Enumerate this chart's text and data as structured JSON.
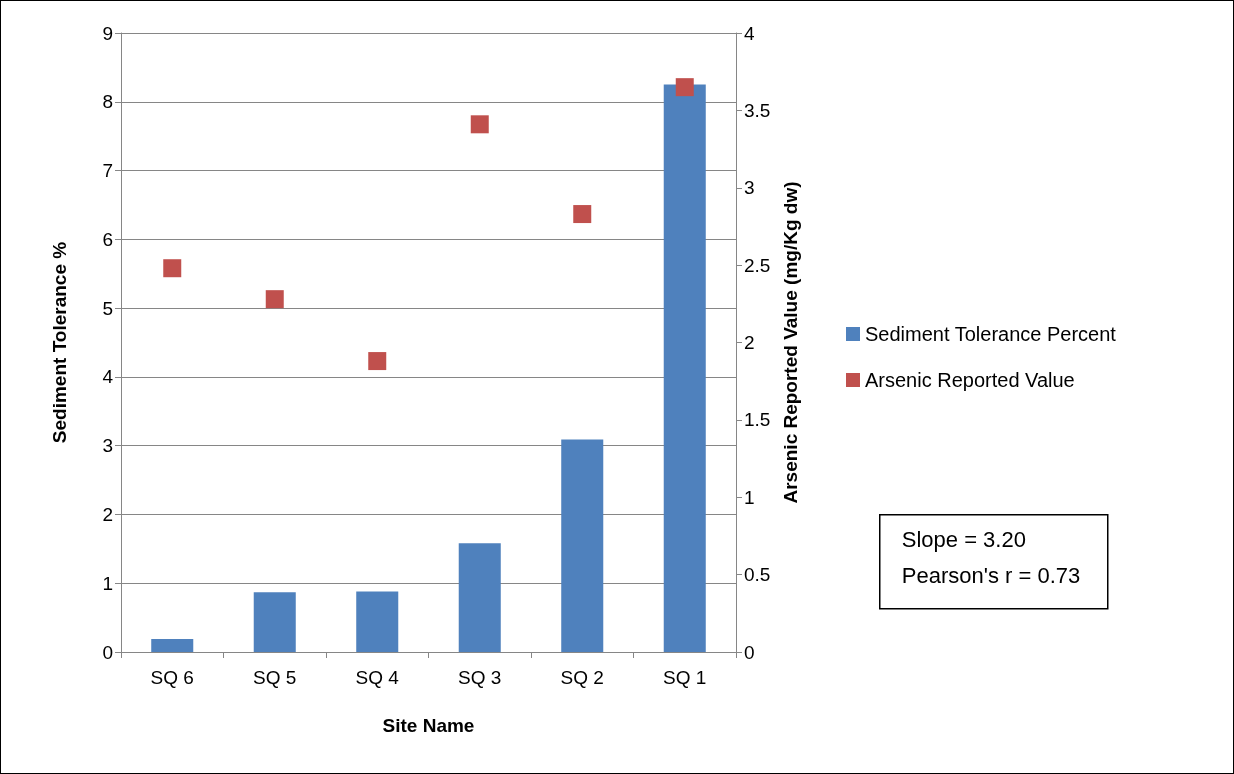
{
  "chart_data": {
    "type": "bar",
    "xlabel": "Site Name",
    "ylabel": "Sediment Tolerance %",
    "y2label": "Arsenic Reported Value (mg/Kg dw)",
    "categories": [
      "SQ 6",
      "SQ 5",
      "SQ 4",
      "SQ 3",
      "SQ 2",
      "SQ 1"
    ],
    "series": [
      {
        "name": "Sediment Tolerance Percent",
        "color": "#4f81bd",
        "values": [
          0.19,
          0.87,
          0.88,
          1.58,
          3.09,
          8.25
        ]
      },
      {
        "name": "Arsenic Reported Value",
        "type": "scatter",
        "axis": "y2",
        "color": "#c0504d",
        "marker": "square",
        "values": [
          2.48,
          2.28,
          1.88,
          3.41,
          2.83,
          3.65
        ]
      }
    ],
    "ylim": [
      0,
      9
    ],
    "yticks": [
      0,
      1,
      2,
      3,
      4,
      5,
      6,
      7,
      8,
      9
    ],
    "y2lim": [
      0,
      4
    ],
    "y2ticks": [
      0,
      0.5,
      1,
      1.5,
      2,
      2.5,
      3,
      3.5,
      4
    ],
    "grid": "y",
    "legend": "right",
    "annotations": [
      "Slope = 3.20",
      "Pearson's r = 0.73"
    ]
  }
}
